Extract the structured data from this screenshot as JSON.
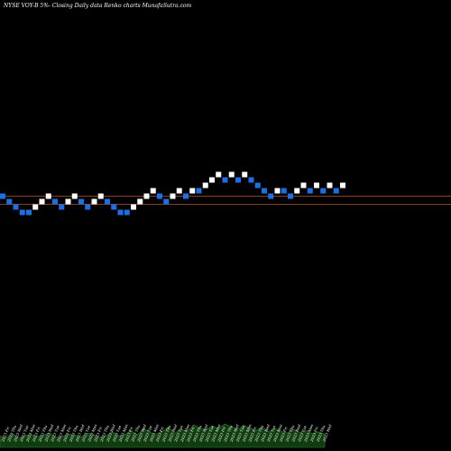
{
  "header": {
    "title": "NYSE VOY-B 5%-   Closing Daily data  Renko  charts MunafaSutra.com"
  },
  "colors": {
    "background": "#000000",
    "up_brick": "#ffffff",
    "down_brick": "#1e6fe6",
    "level_line": "#b3542b",
    "volume_fill": "#0f3d0f",
    "volume_stroke": "#2f7d2f"
  },
  "chart_data": {
    "type": "renko",
    "title": "NYSE VOY-B 5%-   Closing Daily data  Renko  charts MunafaSutra.com",
    "grid": false,
    "bricks": [
      {
        "dir": "down",
        "level": 0
      },
      {
        "dir": "down",
        "level": -1
      },
      {
        "dir": "down",
        "level": -2
      },
      {
        "dir": "down",
        "level": -3
      },
      {
        "dir": "down",
        "level": -3
      },
      {
        "dir": "up",
        "level": -2
      },
      {
        "dir": "up",
        "level": -1
      },
      {
        "dir": "up",
        "level": 0
      },
      {
        "dir": "down",
        "level": -1
      },
      {
        "dir": "down",
        "level": -2
      },
      {
        "dir": "up",
        "level": -1
      },
      {
        "dir": "up",
        "level": 0
      },
      {
        "dir": "down",
        "level": -1
      },
      {
        "dir": "down",
        "level": -2
      },
      {
        "dir": "up",
        "level": -1
      },
      {
        "dir": "up",
        "level": 0
      },
      {
        "dir": "down",
        "level": -1
      },
      {
        "dir": "down",
        "level": -2
      },
      {
        "dir": "down",
        "level": -3
      },
      {
        "dir": "down",
        "level": -3
      },
      {
        "dir": "up",
        "level": -2
      },
      {
        "dir": "up",
        "level": -1
      },
      {
        "dir": "up",
        "level": 0
      },
      {
        "dir": "up",
        "level": 1
      },
      {
        "dir": "down",
        "level": 0
      },
      {
        "dir": "down",
        "level": -1
      },
      {
        "dir": "up",
        "level": 0
      },
      {
        "dir": "up",
        "level": 1
      },
      {
        "dir": "down",
        "level": 0
      },
      {
        "dir": "up",
        "level": 1
      },
      {
        "dir": "down",
        "level": 1
      },
      {
        "dir": "up",
        "level": 2
      },
      {
        "dir": "up",
        "level": 3
      },
      {
        "dir": "up",
        "level": 4
      },
      {
        "dir": "down",
        "level": 3
      },
      {
        "dir": "up",
        "level": 4
      },
      {
        "dir": "down",
        "level": 3
      },
      {
        "dir": "up",
        "level": 4
      },
      {
        "dir": "down",
        "level": 3
      },
      {
        "dir": "down",
        "level": 2
      },
      {
        "dir": "down",
        "level": 1
      },
      {
        "dir": "down",
        "level": 0
      },
      {
        "dir": "up",
        "level": 1
      },
      {
        "dir": "down",
        "level": 1
      },
      {
        "dir": "down",
        "level": 0
      },
      {
        "dir": "up",
        "level": 1
      },
      {
        "dir": "up",
        "level": 2
      },
      {
        "dir": "down",
        "level": 1
      },
      {
        "dir": "up",
        "level": 2
      },
      {
        "dir": "down",
        "level": 1
      },
      {
        "dir": "up",
        "level": 2
      },
      {
        "dir": "down",
        "level": 1
      },
      {
        "dir": "up",
        "level": 2
      }
    ],
    "reference_lines": [
      0.0,
      -1.5
    ],
    "date_labels": [
      "2023 Fri",
      "2023 Thu",
      "2023 Wed",
      "2023 Tue",
      "2023 Mon",
      "2023 Fri",
      "2023 Thu",
      "2023 Wed",
      "2023 Tue",
      "2023 Mon",
      "2023 Fri",
      "2023 Thu",
      "2023 Wed",
      "2023 Tue",
      "2023 Mon",
      "2023 Fri",
      "2023 Thu",
      "2023 Wed",
      "2023 Tue",
      "2023 Mon",
      "2023 Fri",
      "2023 Thu",
      "2023 Wed",
      "2023 Tue",
      "2023 Mon",
      "2023 Fri",
      "2023 Thu",
      "2023 Wed",
      "2023 Tue",
      "2023 Mon",
      "2023 Fri",
      "2023 Thu",
      "2023 Wed",
      "2023 Tue",
      "2023 Mon",
      "2023 Fri",
      "2023 Thu",
      "2023 Wed",
      "2023 Tue",
      "2023 Mon",
      "2023 Fri",
      "2023 Thu",
      "2023 Wed",
      "2023 Tue",
      "2023 Mon",
      "2023 Fri",
      "2023 Thu",
      "2023 Wed",
      "2023 Tue",
      "2023 Mon",
      "2023 Fri",
      "2023 Thu",
      "2023 Wed"
    ],
    "volume": [
      0.35,
      0.3,
      0.42,
      0.28,
      0.36,
      0.4,
      0.33,
      0.38,
      0.45,
      0.3,
      0.34,
      0.41,
      0.37,
      0.32,
      0.44,
      0.39,
      0.31,
      0.36,
      0.48,
      0.35,
      0.4,
      0.52,
      0.38,
      0.58,
      0.46,
      0.4,
      0.5,
      0.62,
      0.44,
      0.56,
      0.48,
      0.7,
      0.6,
      0.54,
      0.66,
      0.58,
      0.72,
      0.64,
      0.55,
      0.68,
      0.6,
      0.52,
      0.62,
      0.48,
      0.58,
      0.5,
      0.44,
      0.56,
      0.46,
      0.52,
      0.42,
      0.48,
      0.4
    ]
  }
}
